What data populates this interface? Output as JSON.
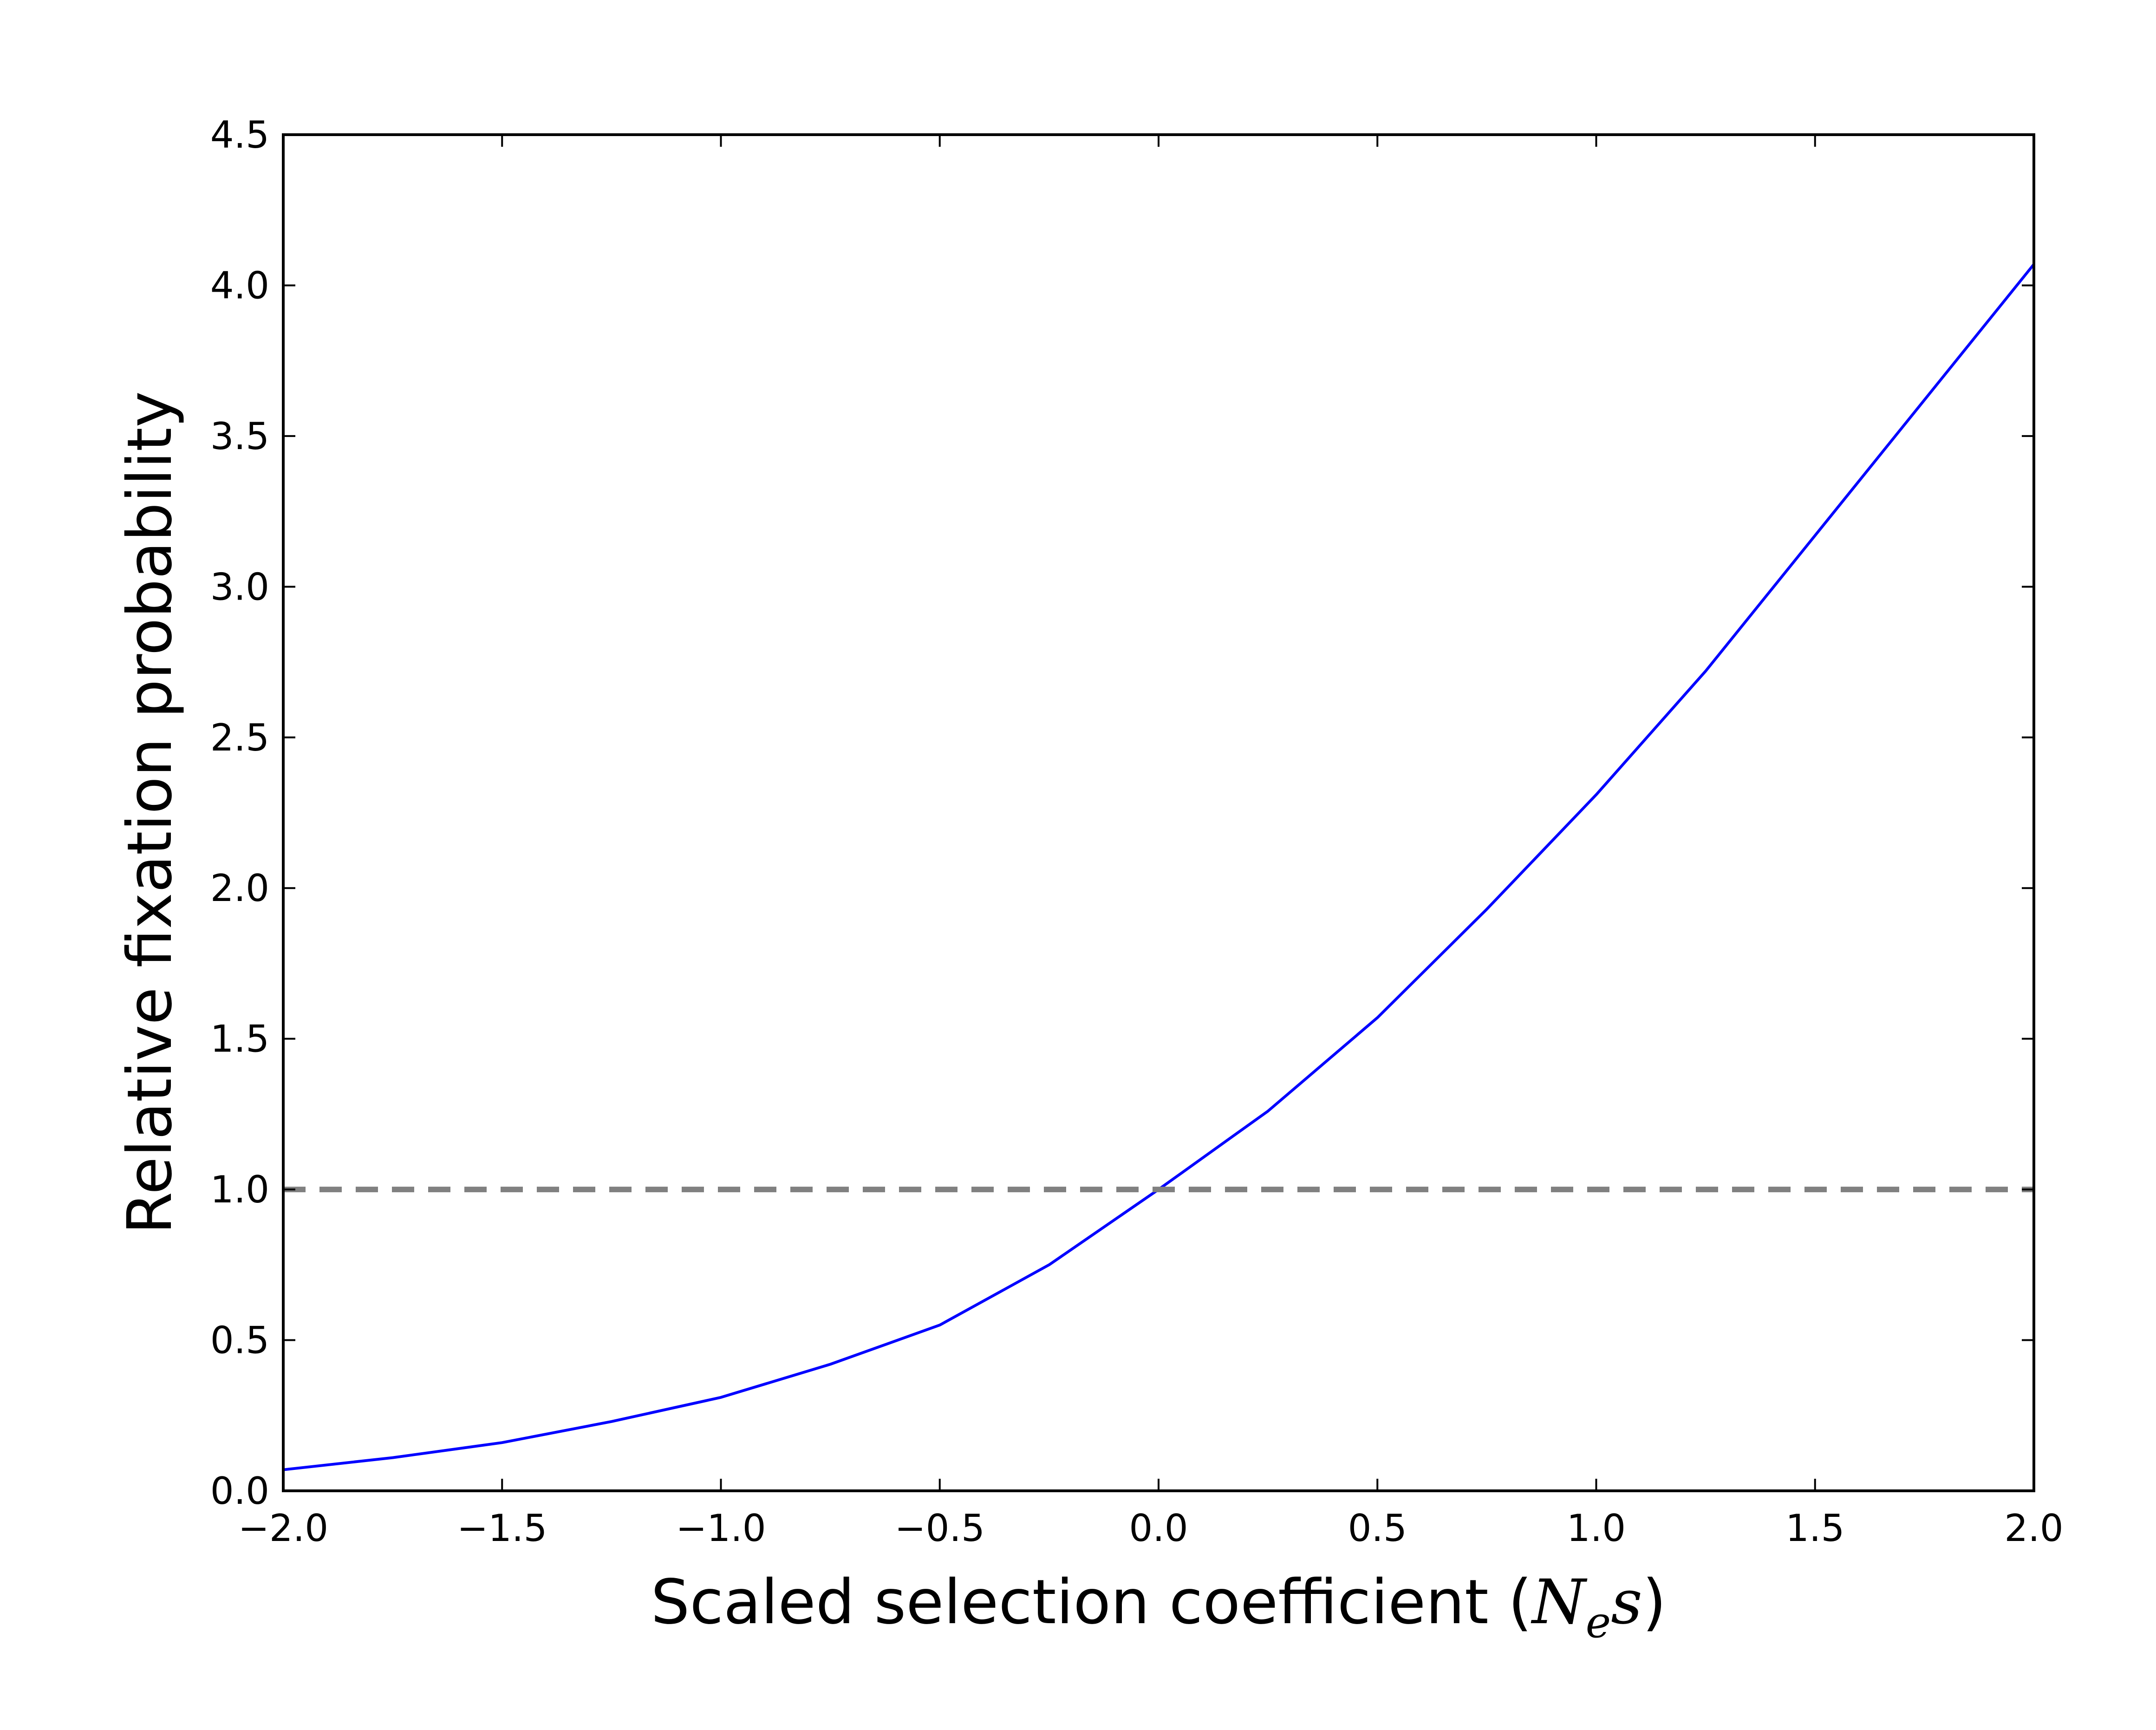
{
  "chart_data": {
    "type": "line",
    "xlabel": "Scaled selection coefficient (",
    "xlabel_math": "N",
    "xlabel_math_sub": "e",
    "xlabel_math_tail": "s",
    "xlabel_close": ")",
    "ylabel": "Relative fixation probability",
    "xlim": [
      -2.0,
      2.0
    ],
    "ylim": [
      0.0,
      4.5
    ],
    "xticks": [
      -2.0,
      -1.5,
      -1.0,
      -0.5,
      0.0,
      0.5,
      1.0,
      1.5,
      2.0
    ],
    "xtick_labels": [
      "−2.0",
      "−1.5",
      "−1.0",
      "−0.5",
      "0.0",
      "0.5",
      "1.0",
      "1.5",
      "2.0"
    ],
    "yticks": [
      0.0,
      0.5,
      1.0,
      1.5,
      2.0,
      2.5,
      3.0,
      3.5,
      4.0,
      4.5
    ],
    "ytick_labels": [
      "0.0",
      "0.5",
      "1.0",
      "1.5",
      "2.0",
      "2.5",
      "3.0",
      "3.5",
      "4.0",
      "4.5"
    ],
    "grid": false,
    "series": [
      {
        "color": "#0000ff",
        "style": "solid",
        "x": [
          -2.0,
          -1.75,
          -1.5,
          -1.25,
          -1.0,
          -0.75,
          -0.5,
          -0.25,
          0.0,
          0.25,
          0.5,
          0.75,
          1.0,
          1.25,
          1.5,
          1.75,
          2.0
        ],
        "y": [
          0.07,
          0.11,
          0.16,
          0.23,
          0.31,
          0.42,
          0.55,
          0.75,
          1.0,
          1.26,
          1.57,
          1.93,
          2.31,
          2.72,
          3.17,
          3.62,
          4.07
        ]
      },
      {
        "color": "#808080",
        "style": "dashed",
        "x": [
          -2.0,
          2.0
        ],
        "y": [
          1.0,
          1.0
        ]
      }
    ]
  }
}
